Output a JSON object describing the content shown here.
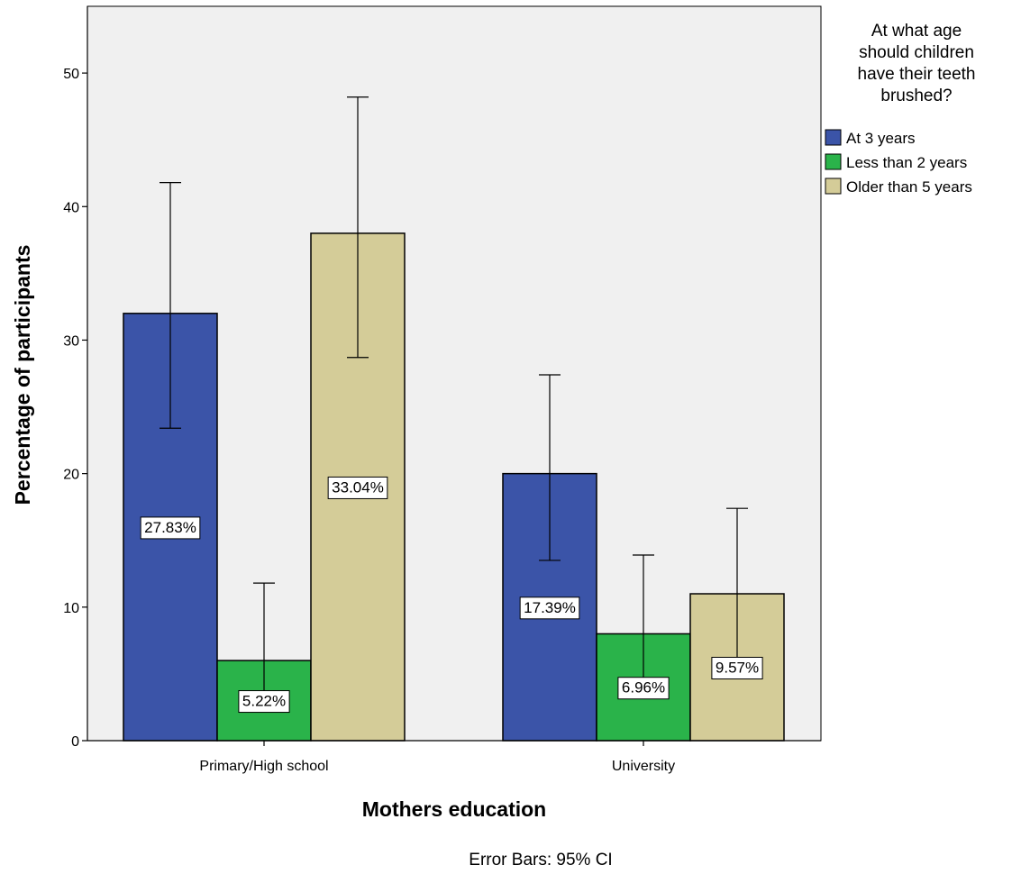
{
  "chart_data": {
    "type": "bar",
    "xlabel": "Mothers education",
    "ylabel": "Percentage of participants",
    "categories": [
      "Primary/High school",
      "University"
    ],
    "ylim": [
      0,
      55
    ],
    "yticks": [
      0,
      10,
      20,
      30,
      40,
      50
    ],
    "grid": false,
    "legend": {
      "title": [
        "At what age",
        "should children",
        "have their teeth",
        "brushed?"
      ],
      "position": "right"
    },
    "series": [
      {
        "name": "At 3 years",
        "color": "#3b54a8",
        "values": [
          32,
          20
        ],
        "ci": [
          [
            23.4,
            41.8
          ],
          [
            13.5,
            27.4
          ]
        ],
        "labels": [
          "27.83%",
          "17.39%"
        ]
      },
      {
        "name": "Less than 2 years",
        "color": "#2ab34a",
        "values": [
          6,
          8
        ],
        "ci": [
          [
            2.4,
            11.8
          ],
          [
            4.2,
            13.9
          ]
        ],
        "labels": [
          "5.22%",
          "6.96%"
        ]
      },
      {
        "name": "Older than 5 years",
        "color": "#d4cc98",
        "values": [
          38,
          11
        ],
        "ci": [
          [
            28.7,
            48.2
          ],
          [
            6.2,
            17.4
          ]
        ],
        "labels": [
          "33.04%",
          "9.57%"
        ]
      }
    ],
    "footnote": "Error Bars: 95% CI"
  }
}
